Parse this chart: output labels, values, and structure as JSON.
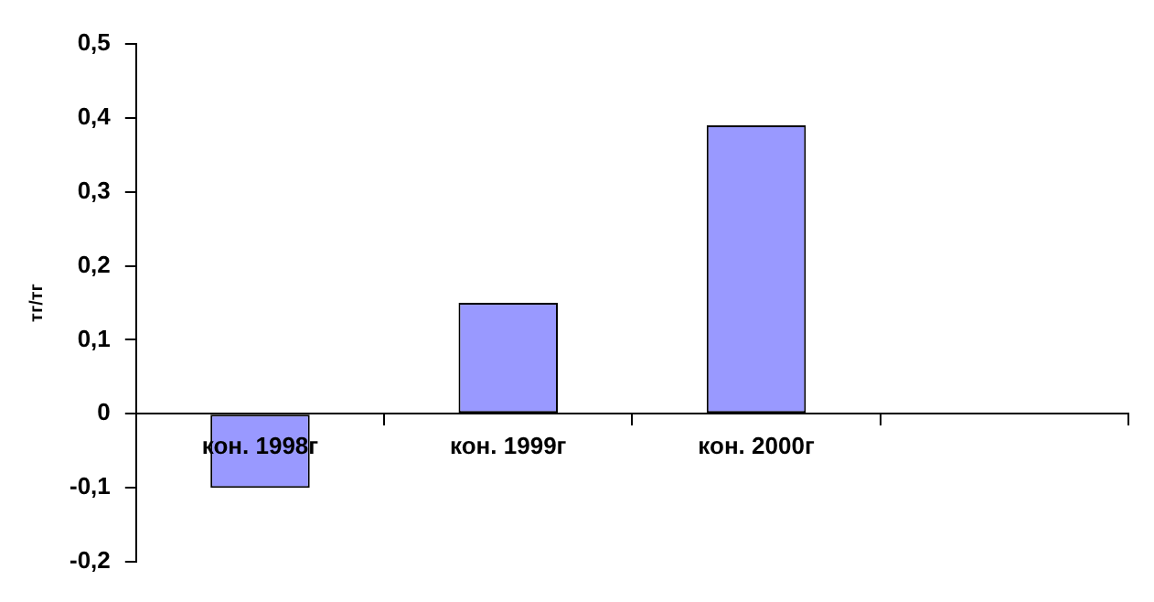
{
  "chart_data": {
    "type": "bar",
    "ylabel": "тг/тг",
    "categories": [
      "кон. 1998г",
      "кон. 1999г",
      "кон. 2000г",
      null
    ],
    "series": [
      {
        "color": "#9999ff",
        "values": [
          -0.1,
          0.15,
          0.39,
          null
        ]
      }
    ],
    "ylim": [
      -0.2,
      0.5
    ],
    "yticks": [
      {
        "value": -0.2,
        "label": "-0,2"
      },
      {
        "value": -0.1,
        "label": "-0,1"
      },
      {
        "value": 0,
        "label": "0"
      },
      {
        "value": 0.1,
        "label": "0,1"
      },
      {
        "value": 0.2,
        "label": "0,2"
      },
      {
        "value": 0.3,
        "label": "0,3"
      },
      {
        "value": 0.4,
        "label": "0,4"
      },
      {
        "value": 0.5,
        "label": "0,5"
      }
    ],
    "grid": false,
    "legend": false
  }
}
